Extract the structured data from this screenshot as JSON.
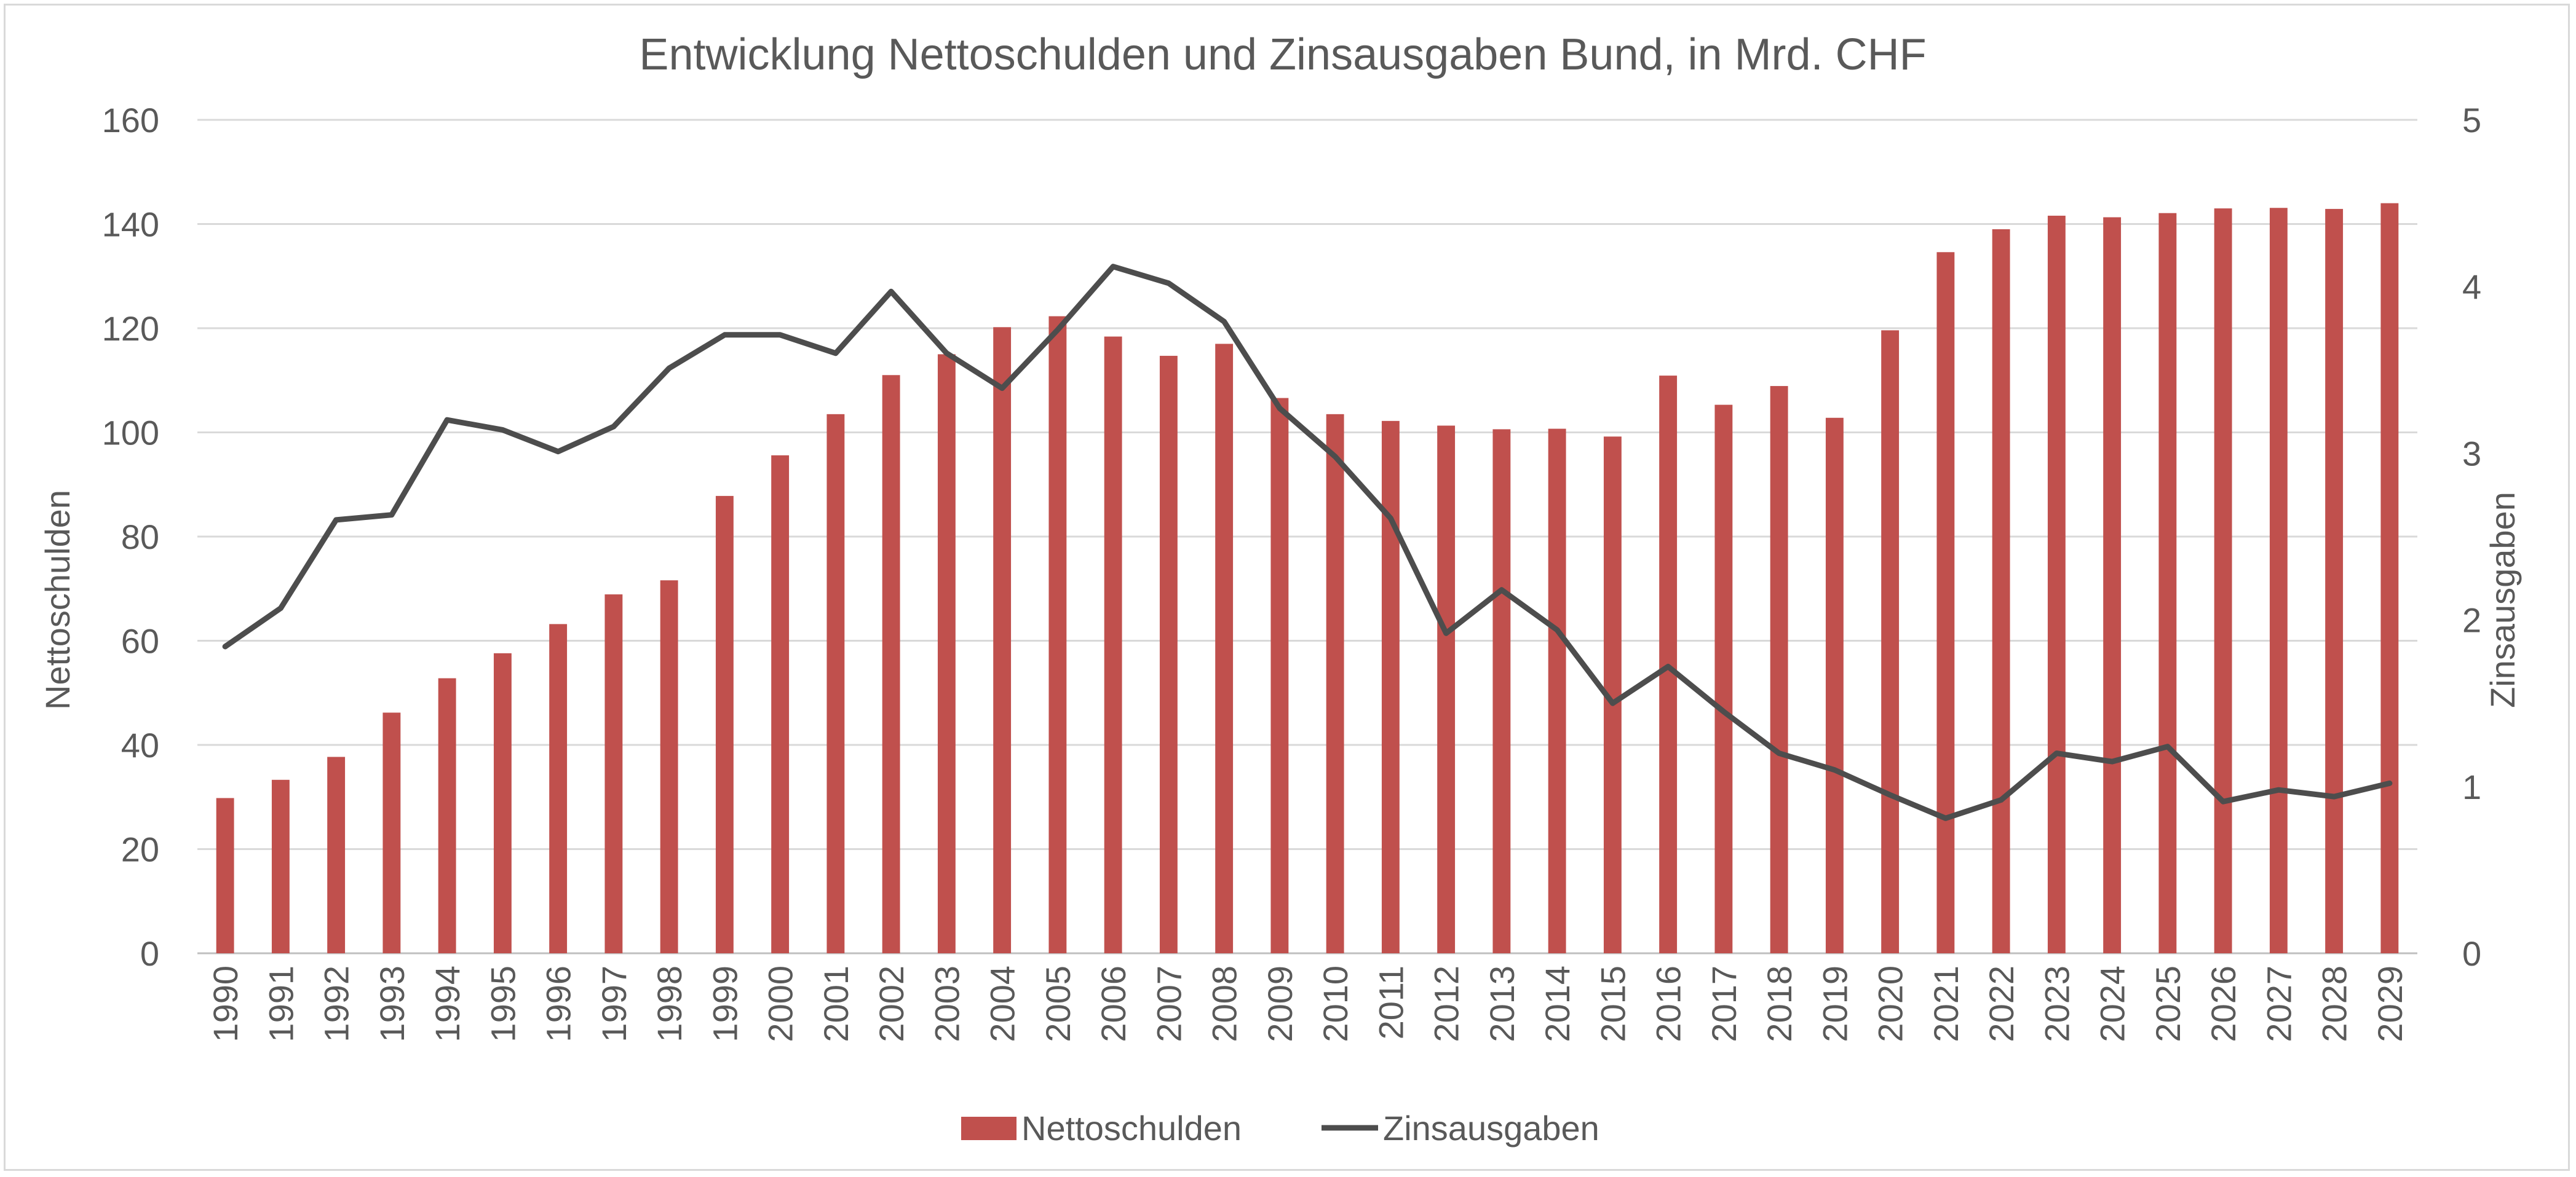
{
  "chart_data": {
    "type": "bar",
    "title": "Entwicklung Nettoschulden und Zinsausgaben Bund, in Mrd. CHF",
    "categories": [
      "1990",
      "1991",
      "1992",
      "1993",
      "1994",
      "1995",
      "1996",
      "1997",
      "1998",
      "1999",
      "2000",
      "2001",
      "2002",
      "2003",
      "2004",
      "2005",
      "2006",
      "2007",
      "2008",
      "2009",
      "2010",
      "2011",
      "2012",
      "2013",
      "2014",
      "2015",
      "2016",
      "2017",
      "2018",
      "2019",
      "2020",
      "2021",
      "2022",
      "2023",
      "2024",
      "2025",
      "2026",
      "2027",
      "2028",
      "2029"
    ],
    "series": [
      {
        "name": "Nettoschulden",
        "type": "bar",
        "axis": "left",
        "color": "#c0504d",
        "values": [
          29.8,
          33.3,
          37.7,
          46.2,
          52.8,
          57.6,
          63.2,
          68.9,
          71.6,
          87.8,
          95.6,
          103.5,
          111.0,
          115.0,
          120.2,
          122.3,
          118.4,
          114.7,
          117.0,
          106.6,
          103.5,
          102.2,
          101.3,
          100.6,
          100.7,
          99.2,
          110.9,
          105.3,
          108.9,
          102.8,
          119.6,
          134.6,
          139.0,
          141.6,
          141.3,
          142.1,
          143.0,
          143.1,
          142.9,
          144.0
        ]
      },
      {
        "name": "Zinsausgaben",
        "type": "line",
        "axis": "right",
        "color": "#4d4d4d",
        "values": [
          1.84,
          2.07,
          2.6,
          2.63,
          3.2,
          3.14,
          3.01,
          3.16,
          3.51,
          3.71,
          3.71,
          3.6,
          3.97,
          3.6,
          3.39,
          3.74,
          4.12,
          4.02,
          3.79,
          3.27,
          2.98,
          2.61,
          1.92,
          2.18,
          1.94,
          1.5,
          1.72,
          1.45,
          1.2,
          1.1,
          0.95,
          0.81,
          0.92,
          1.2,
          1.15,
          1.24,
          0.91,
          0.98,
          0.94,
          1.02
        ]
      }
    ],
    "y_left": {
      "label": "Nettoschulden",
      "min": 0,
      "max": 160,
      "ticks": [
        0,
        20,
        40,
        60,
        80,
        100,
        120,
        140,
        160
      ]
    },
    "y_right": {
      "label": "Zinsausgaben",
      "min": 0,
      "max": 5,
      "ticks": [
        0,
        1,
        2,
        3,
        4,
        5
      ]
    },
    "grid": true,
    "legend": {
      "position": "bottom",
      "entries": [
        "Nettoschulden",
        "Zinsausgaben"
      ]
    }
  }
}
